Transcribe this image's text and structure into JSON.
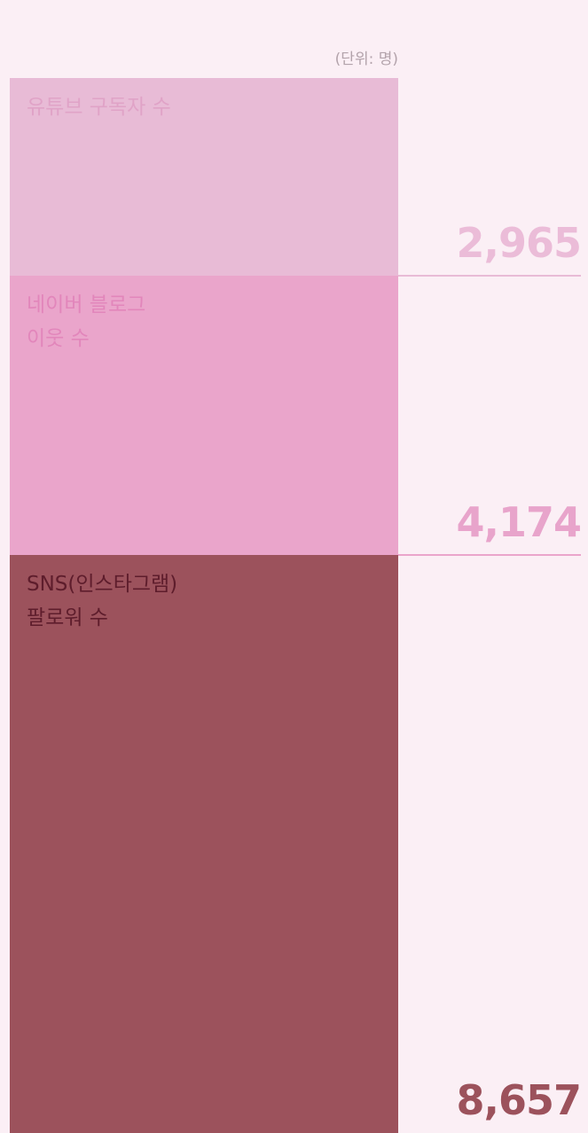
{
  "chart_data": {
    "type": "stacked-bar",
    "unit_label": "(단위: 명)",
    "series": [
      {
        "name": "유튜브 구독자 수",
        "color": "#e8bbd6",
        "label_color": "#e0a3c7",
        "value_color": "#ebbcd8",
        "values": [
          2965
        ],
        "value_labels": [
          "2,965"
        ]
      },
      {
        "name": "네이버 블로그\n이웃 수",
        "color": "#eaa5cb",
        "label_color": "#e286bb",
        "value_color": "#e8a4cb",
        "values": [
          4174
        ],
        "value_labels": [
          "4,174"
        ]
      },
      {
        "name": "SNS(인스타그램)\n팔로워 수",
        "color": "#9c525c",
        "label_color": "#5e1d2c",
        "value_color": "#9c525c",
        "values": [
          8657
        ],
        "value_labels": [
          "8,657"
        ]
      }
    ]
  }
}
